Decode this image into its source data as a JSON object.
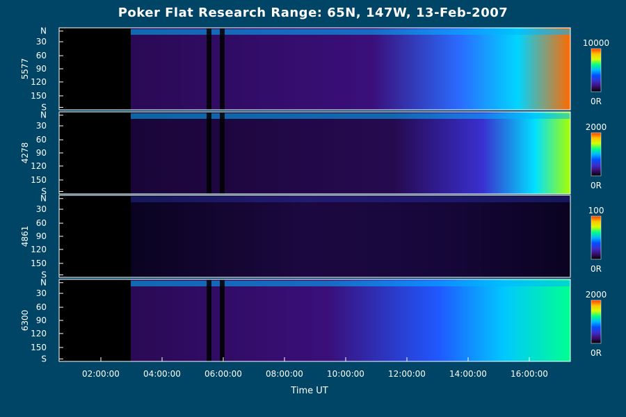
{
  "title": "Poker Flat Research Range: 65N, 147W, 13-Feb-2007",
  "colors": {
    "background": "#004466",
    "frame": "#ffffff",
    "colorbar_stops": [
      "#000000",
      "#3b0f70",
      "#3b2fcf",
      "#0050ff",
      "#00b7ff",
      "#00ff88",
      "#d4ff00",
      "#ffc400",
      "#ff3a00"
    ]
  },
  "chart_data": {
    "type": "heatmap",
    "xlabel": "Time UT",
    "x_ticks": [
      "02:00:00",
      "04:00:00",
      "06:00:00",
      "08:00:00",
      "10:00:00",
      "12:00:00",
      "14:00:00",
      "16:00:00"
    ],
    "y_ticks": [
      "N",
      "30",
      "60",
      "90",
      "120",
      "150",
      "S"
    ],
    "panels": [
      {
        "name": "5577",
        "colorbar_max": "10000",
        "colorbar_min": "0R"
      },
      {
        "name": "4278",
        "colorbar_max": "2000",
        "colorbar_min": "0R"
      },
      {
        "name": "4861",
        "colorbar_max": "100",
        "colorbar_min": "0R"
      },
      {
        "name": "6300",
        "colorbar_max": "2000",
        "colorbar_min": "0R"
      }
    ]
  }
}
